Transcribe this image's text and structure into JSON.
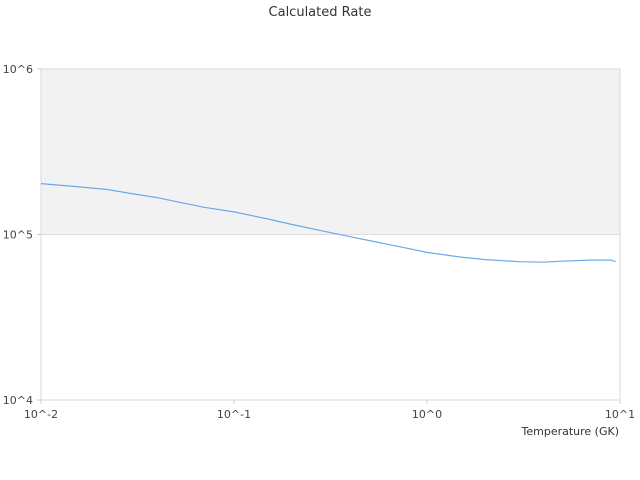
{
  "chart_data": {
    "type": "line",
    "title": "Calculated Rate",
    "xlabel": "Temperature (GK)",
    "ylabel": "",
    "x_scale": "log",
    "y_scale": "log",
    "xlim": [
      0.01,
      10
    ],
    "ylim": [
      10000,
      1000000
    ],
    "x_ticks": [
      "10^-2",
      "10^-1",
      "10^0",
      "10^1"
    ],
    "y_ticks": [
      "10^4",
      "10^5",
      "10^6"
    ],
    "shaded_band": {
      "y_from": 100000,
      "y_to": 1000000,
      "color": "#f2f2f2"
    },
    "series": [
      {
        "color": "#6aaae8",
        "x": [
          0.01,
          0.015,
          0.022,
          0.03,
          0.04,
          0.05,
          0.07,
          0.1,
          0.15,
          0.2,
          0.3,
          0.4,
          0.5,
          0.7,
          1.0,
          1.5,
          2.0,
          3.0,
          4.0,
          5.0,
          7.0,
          9.0,
          9.5
        ],
        "y": [
          203000,
          195000,
          187000,
          176000,
          167000,
          158000,
          146000,
          137000,
          124000,
          115000,
          104000,
          97000,
          92000,
          85000,
          78000,
          73000,
          70500,
          68500,
          68000,
          69000,
          70000,
          70000,
          68500
        ]
      }
    ]
  }
}
